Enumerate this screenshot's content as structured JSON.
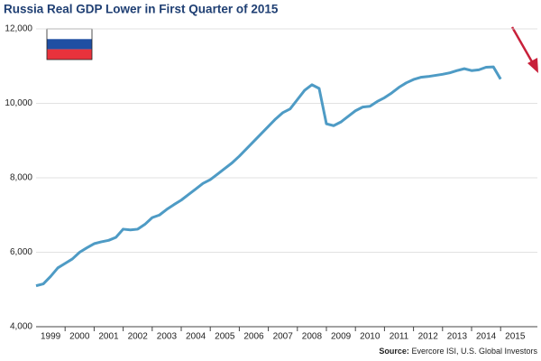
{
  "chart_data": {
    "type": "line",
    "title": "Russia Real GDP Lower in First Quarter of 2015",
    "source_label": "Source:",
    "source": "Evercore ISI, U.S. Global Investors",
    "categories": [
      "1999",
      null,
      null,
      null,
      "2000",
      null,
      null,
      null,
      "2001",
      null,
      null,
      null,
      "2002",
      null,
      null,
      null,
      "2003",
      null,
      null,
      null,
      "2004",
      null,
      null,
      null,
      "2005",
      null,
      null,
      null,
      "2006",
      null,
      null,
      null,
      "2007",
      null,
      null,
      null,
      "2008",
      null,
      null,
      null,
      "2009",
      null,
      null,
      null,
      "2010",
      null,
      null,
      null,
      "2011",
      null,
      null,
      null,
      "2012",
      null,
      null,
      null,
      "2013",
      null,
      null,
      null,
      "2014",
      null,
      null,
      null,
      "2015"
    ],
    "series": [
      {
        "name": "Russia Real GDP",
        "color": "#4e9bc5",
        "values": [
          5100,
          5150,
          5350,
          5580,
          5700,
          5820,
          6000,
          6120,
          6230,
          6280,
          6320,
          6400,
          6620,
          6600,
          6620,
          6750,
          6930,
          7000,
          7150,
          7280,
          7400,
          7550,
          7700,
          7850,
          7950,
          8100,
          8250,
          8400,
          8580,
          8780,
          8980,
          9180,
          9380,
          9580,
          9750,
          9850,
          10100,
          10350,
          10500,
          10400,
          9450,
          9400,
          9500,
          9650,
          9800,
          9900,
          9920,
          10050,
          10150,
          10280,
          10430,
          10550,
          10640,
          10700,
          10720,
          10750,
          10780,
          10820,
          10880,
          10930,
          10880,
          10900,
          10970,
          10980,
          10650
        ]
      }
    ],
    "ylim": [
      4000,
      12000
    ],
    "yticks": [
      {
        "value": 4000,
        "label": "4,000"
      },
      {
        "value": 6000,
        "label": "6,000"
      },
      {
        "value": 8000,
        "label": "8,000"
      },
      {
        "value": 10000,
        "label": "10,000"
      },
      {
        "value": 12000,
        "label": "12,000"
      }
    ],
    "grid": true
  }
}
